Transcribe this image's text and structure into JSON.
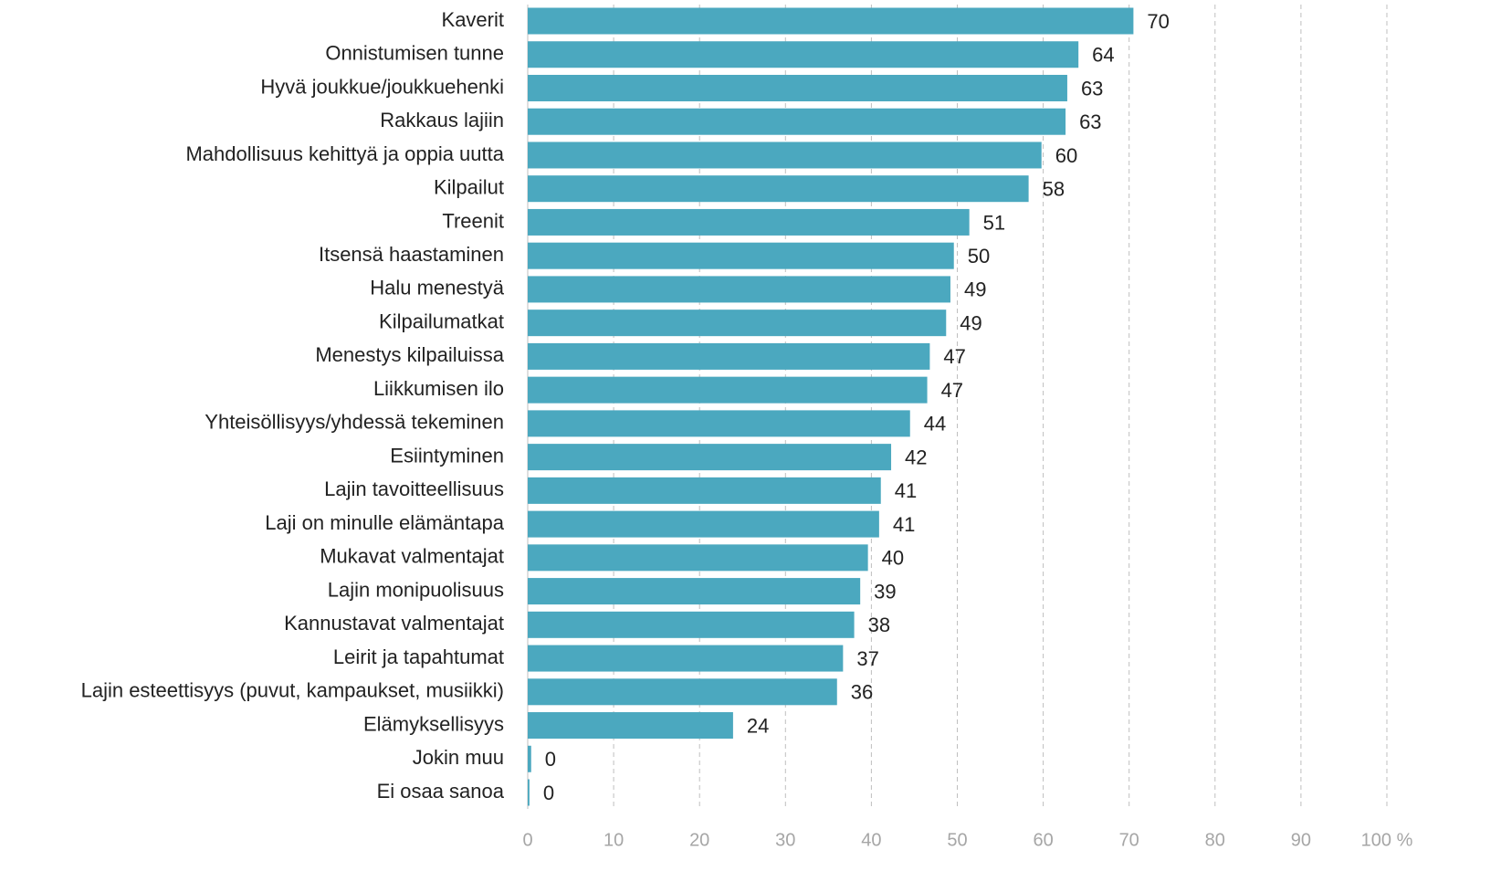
{
  "chart_data": {
    "type": "bar",
    "orientation": "horizontal",
    "categories": [
      "Kaverit",
      "Onnistumisen tunne",
      "Hyvä joukkue/joukkuehenki",
      "Rakkaus lajiin",
      "Mahdollisuus kehittyä ja oppia uutta",
      "Kilpailut",
      "Treenit",
      "Itsensä haastaminen",
      "Halu menestyä",
      "Kilpailumatkat",
      "Menestys kilpailuissa",
      "Liikkumisen ilo",
      "Yhteisöllisyys/yhdessä tekeminen",
      "Esiintyminen",
      "Lajin tavoitteellisuus",
      "Laji on minulle elämäntapa",
      "Mukavat valmentajat",
      "Lajin monipuolisuus",
      "Kannustavat valmentajat",
      "Leirit ja tapahtumat",
      "Lajin esteettisyys (puvut, kampaukset, musiikki)",
      "Elämyksellisyys",
      "Jokin muu",
      "Ei osaa sanoa"
    ],
    "values": [
      70.5,
      64.1,
      62.8,
      62.6,
      59.8,
      58.3,
      51.4,
      49.6,
      49.2,
      48.7,
      46.8,
      46.5,
      44.5,
      42.3,
      41.1,
      40.9,
      39.6,
      38.7,
      38.0,
      36.7,
      36.0,
      23.9,
      0.4,
      0.2
    ],
    "value_labels": [
      "70",
      "64",
      "63",
      "63",
      "60",
      "58",
      "51",
      "50",
      "49",
      "49",
      "47",
      "47",
      "44",
      "42",
      "41",
      "41",
      "40",
      "39",
      "38",
      "37",
      "36",
      "24",
      "0",
      "0"
    ],
    "color": "#4ba8bf",
    "xlim": [
      0,
      100
    ],
    "xticks": [
      0,
      10,
      20,
      30,
      40,
      50,
      60,
      70,
      80,
      90,
      {
        "value": 100,
        "label": "100 %"
      }
    ],
    "grid": true
  }
}
